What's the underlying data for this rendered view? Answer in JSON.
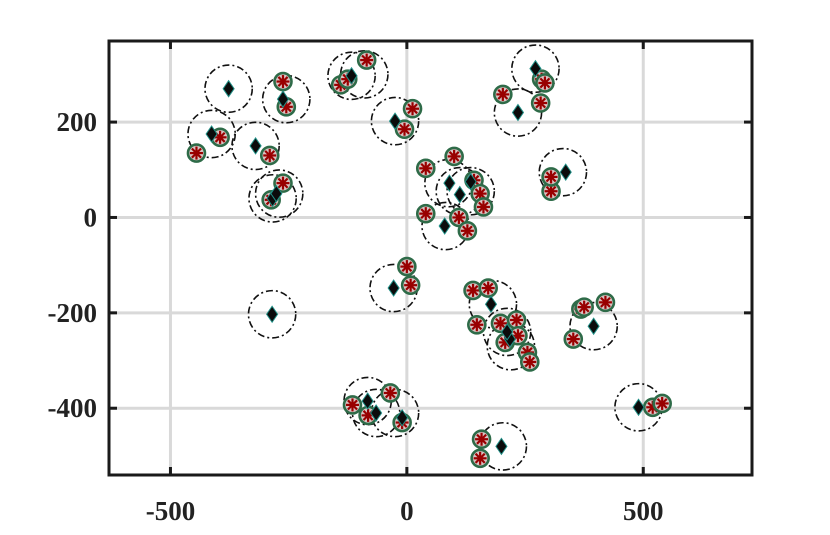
{
  "chart_data": {
    "type": "scatter",
    "title": "",
    "xlabel": "",
    "ylabel": "",
    "xlim": [
      -630,
      730
    ],
    "ylim": [
      -540,
      370
    ],
    "xticks": [
      -500,
      0,
      500
    ],
    "xtick_labels": [
      "-500",
      "0",
      "500"
    ],
    "yticks": [
      200,
      0,
      -200,
      -400
    ],
    "ytick_labels": [
      "200",
      "0",
      "-200",
      "-400"
    ],
    "grid": true,
    "legend": "none",
    "coverage_radius": 50,
    "series": [
      {
        "marker": "diamond",
        "color": "#0b0b0b",
        "edge_color": "#1f8f86",
        "points": [
          [
            -377,
            270
          ],
          [
            -413,
            175
          ],
          [
            -320,
            150
          ],
          [
            -262,
            248
          ],
          [
            -284,
            40
          ],
          [
            -276,
            50
          ],
          [
            -117,
            297
          ],
          [
            -25,
            202
          ],
          [
            -285,
            -203
          ],
          [
            -28,
            -148
          ],
          [
            90,
            72
          ],
          [
            112,
            48
          ],
          [
            80,
            -18
          ],
          [
            135,
            75
          ],
          [
            235,
            220
          ],
          [
            272,
            312
          ],
          [
            336,
            95
          ],
          [
            178,
            -182
          ],
          [
            218,
            -255
          ],
          [
            212,
            -240
          ],
          [
            395,
            -228
          ],
          [
            490,
            -398
          ],
          [
            200,
            -480
          ],
          [
            -83,
            -385
          ],
          [
            -65,
            -410
          ],
          [
            -10,
            -420
          ]
        ]
      },
      {
        "marker": "circled-asterisk",
        "color": "#990000",
        "edge_color": "#2e6b48",
        "points": [
          [
            -445,
            135
          ],
          [
            -395,
            168
          ],
          [
            -290,
            130
          ],
          [
            -262,
            285
          ],
          [
            -255,
            232
          ],
          [
            -262,
            72
          ],
          [
            -287,
            37
          ],
          [
            -140,
            278
          ],
          [
            -125,
            290
          ],
          [
            -85,
            330
          ],
          [
            -5,
            185
          ],
          [
            12,
            228
          ],
          [
            40,
            103
          ],
          [
            100,
            128
          ],
          [
            40,
            8
          ],
          [
            110,
            0
          ],
          [
            128,
            -28
          ],
          [
            142,
            78
          ],
          [
            155,
            50
          ],
          [
            162,
            22
          ],
          [
            203,
            258
          ],
          [
            283,
            240
          ],
          [
            285,
            290
          ],
          [
            292,
            282
          ],
          [
            305,
            55
          ],
          [
            305,
            85
          ],
          [
            0,
            -103
          ],
          [
            8,
            -142
          ],
          [
            140,
            -153
          ],
          [
            172,
            -148
          ],
          [
            148,
            -225
          ],
          [
            198,
            -222
          ],
          [
            208,
            -262
          ],
          [
            232,
            -215
          ],
          [
            235,
            -248
          ],
          [
            255,
            -283
          ],
          [
            260,
            -303
          ],
          [
            352,
            -255
          ],
          [
            368,
            -192
          ],
          [
            375,
            -188
          ],
          [
            420,
            -178
          ],
          [
            -115,
            -393
          ],
          [
            -82,
            -415
          ],
          [
            -35,
            -368
          ],
          [
            -10,
            -430
          ],
          [
            155,
            -505
          ],
          [
            158,
            -465
          ],
          [
            520,
            -398
          ],
          [
            540,
            -390
          ]
        ]
      }
    ],
    "coverage_circles": [
      [
        -377,
        270
      ],
      [
        -413,
        175
      ],
      [
        -320,
        150
      ],
      [
        -255,
        248
      ],
      [
        -284,
        40
      ],
      [
        -270,
        50
      ],
      [
        -117,
        297
      ],
      [
        -90,
        300
      ],
      [
        -25,
        202
      ],
      [
        -285,
        -203
      ],
      [
        -28,
        -148
      ],
      [
        88,
        72
      ],
      [
        112,
        55
      ],
      [
        82,
        -18
      ],
      [
        135,
        55
      ],
      [
        235,
        220
      ],
      [
        272,
        312
      ],
      [
        330,
        95
      ],
      [
        182,
        -182
      ],
      [
        220,
        -270
      ],
      [
        212,
        -240
      ],
      [
        395,
        -228
      ],
      [
        490,
        -398
      ],
      [
        203,
        -480
      ],
      [
        -83,
        -385
      ],
      [
        -65,
        -410
      ],
      [
        -25,
        -410
      ]
    ]
  }
}
